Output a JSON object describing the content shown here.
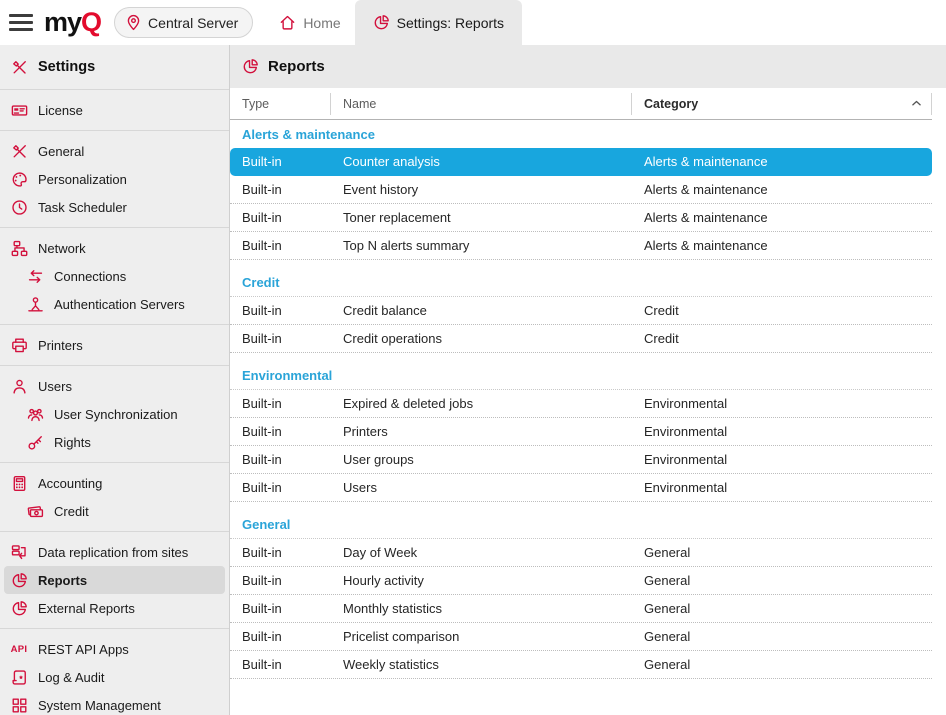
{
  "topbar": {
    "logo_my": "my",
    "logo_q": "Q",
    "server_button_label": "Central Server",
    "tabs": [
      {
        "label": "Home",
        "icon": "home-icon",
        "active": false
      },
      {
        "label": "Settings: Reports",
        "icon": "reports-pie-icon",
        "active": true
      }
    ]
  },
  "sidebar": {
    "title": "Settings",
    "title_icon": "tools-icon",
    "sections": [
      {
        "items": [
          {
            "label": "License",
            "icon": "license",
            "indent": false,
            "selected": false
          }
        ]
      },
      {
        "items": [
          {
            "label": "General",
            "icon": "tools",
            "indent": false,
            "selected": false
          },
          {
            "label": "Personalization",
            "icon": "palette",
            "indent": false,
            "selected": false
          },
          {
            "label": "Task Scheduler",
            "icon": "clock",
            "indent": false,
            "selected": false
          }
        ]
      },
      {
        "items": [
          {
            "label": "Network",
            "icon": "sitemap",
            "indent": false,
            "selected": false
          },
          {
            "label": "Connections",
            "icon": "swap-arrows",
            "indent": true,
            "selected": false
          },
          {
            "label": "Authentication Servers",
            "icon": "person-baseline",
            "indent": true,
            "selected": false
          }
        ]
      },
      {
        "items": [
          {
            "label": "Printers",
            "icon": "printer",
            "indent": false,
            "selected": false
          }
        ]
      },
      {
        "items": [
          {
            "label": "Users",
            "icon": "user",
            "indent": false,
            "selected": false
          },
          {
            "label": "User Synchronization",
            "icon": "user-group",
            "indent": true,
            "selected": false
          },
          {
            "label": "Rights",
            "icon": "key",
            "indent": true,
            "selected": false
          }
        ]
      },
      {
        "items": [
          {
            "label": "Accounting",
            "icon": "calculator",
            "indent": false,
            "selected": false
          },
          {
            "label": "Credit",
            "icon": "banknotes",
            "indent": true,
            "selected": false
          }
        ]
      },
      {
        "items": [
          {
            "label": "Data replication from sites",
            "icon": "replication",
            "indent": false,
            "selected": false
          },
          {
            "label": "Reports",
            "icon": "pie-chart",
            "indent": false,
            "selected": true
          },
          {
            "label": "External Reports",
            "icon": "pie-chart",
            "indent": false,
            "selected": false
          }
        ]
      },
      {
        "items": [
          {
            "label": "REST API Apps",
            "icon": "api",
            "indent": false,
            "selected": false
          },
          {
            "label": "Log & Audit",
            "icon": "scroll",
            "indent": false,
            "selected": false
          },
          {
            "label": "System Management",
            "icon": "grid",
            "indent": false,
            "selected": false
          }
        ]
      }
    ]
  },
  "main": {
    "title": "Reports",
    "title_icon": "reports-pie-icon",
    "columns": {
      "type": "Type",
      "name": "Name",
      "category": "Category"
    },
    "sort": {
      "column": "Category",
      "direction": "ascending"
    },
    "groups": [
      {
        "name": "Alerts & maintenance",
        "rows": [
          {
            "type": "Built-in",
            "name": "Counter analysis",
            "category": "Alerts & maintenance",
            "selected": true
          },
          {
            "type": "Built-in",
            "name": "Event history",
            "category": "Alerts & maintenance",
            "selected": false
          },
          {
            "type": "Built-in",
            "name": "Toner replacement",
            "category": "Alerts & maintenance",
            "selected": false
          },
          {
            "type": "Built-in",
            "name": "Top N alerts summary",
            "category": "Alerts & maintenance",
            "selected": false
          }
        ]
      },
      {
        "name": "Credit",
        "rows": [
          {
            "type": "Built-in",
            "name": "Credit balance",
            "category": "Credit",
            "selected": false
          },
          {
            "type": "Built-in",
            "name": "Credit operations",
            "category": "Credit",
            "selected": false
          }
        ]
      },
      {
        "name": "Environmental",
        "rows": [
          {
            "type": "Built-in",
            "name": "Expired & deleted jobs",
            "category": "Environmental",
            "selected": false
          },
          {
            "type": "Built-in",
            "name": "Printers",
            "category": "Environmental",
            "selected": false
          },
          {
            "type": "Built-in",
            "name": "User groups",
            "category": "Environmental",
            "selected": false
          },
          {
            "type": "Built-in",
            "name": "Users",
            "category": "Environmental",
            "selected": false
          }
        ]
      },
      {
        "name": "General",
        "rows": [
          {
            "type": "Built-in",
            "name": "Day of Week",
            "category": "General",
            "selected": false
          },
          {
            "type": "Built-in",
            "name": "Hourly activity",
            "category": "General",
            "selected": false
          },
          {
            "type": "Built-in",
            "name": "Monthly statistics",
            "category": "General",
            "selected": false
          },
          {
            "type": "Built-in",
            "name": "Pricelist comparison",
            "category": "General",
            "selected": false
          },
          {
            "type": "Built-in",
            "name": "Weekly statistics",
            "category": "General",
            "selected": false
          }
        ]
      }
    ]
  },
  "colors": {
    "brand_red": "#e30b2d",
    "icon_red": "#d2103c",
    "group_header_cyan": "#2aa4d8",
    "selected_row_bg": "#18a6de",
    "sidebar_bg": "#eeeeee",
    "header_bar_bg": "#e9e9e9",
    "selected_sidebar_item_bg": "#d9d9d9"
  }
}
